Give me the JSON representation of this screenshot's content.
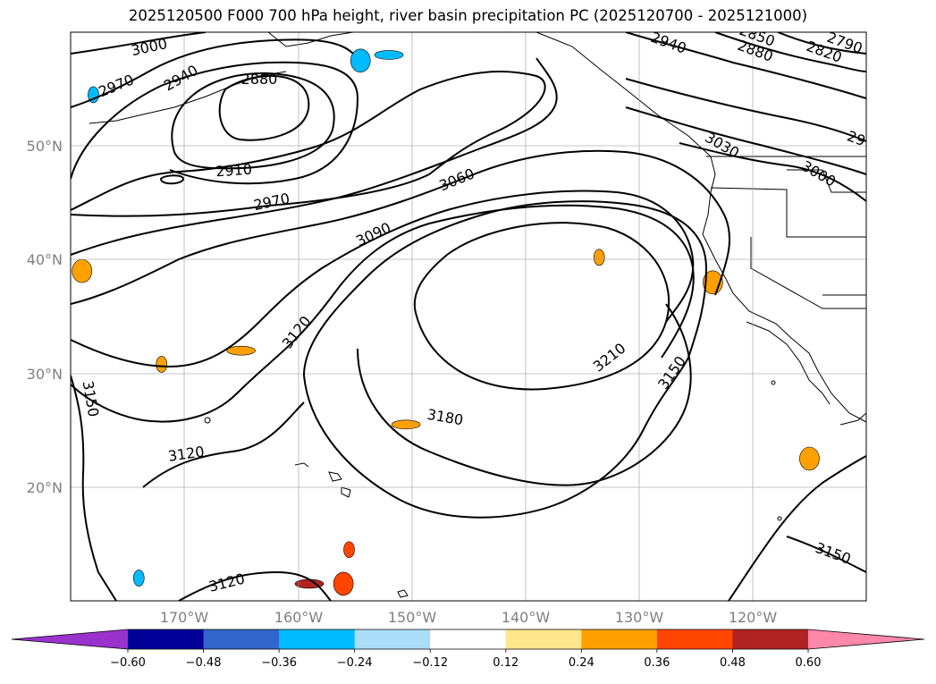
{
  "title": "2025120500 F000 700 hPa height, river basin precipitation PC (2025120700 - 2025121000)",
  "map": {
    "lat_labels": [
      "50°N",
      "40°N",
      "30°N",
      "20°N"
    ],
    "lon_labels": [
      "170°W",
      "160°W",
      "150°W",
      "140°W",
      "130°W",
      "120°W"
    ]
  },
  "chart_data": {
    "type": "heatmap",
    "title": "2025120500 F000 700 hPa height, river basin precipitation PC (2025120700 - 2025121000)",
    "lon_range": [
      -180,
      -110
    ],
    "lat_range": [
      10,
      60
    ],
    "lon_ticks": [
      -170,
      -160,
      -150,
      -140,
      -130,
      -120
    ],
    "lat_ticks": [
      50,
      40,
      30,
      20
    ],
    "height_contours": {
      "units": "m",
      "interval": 30,
      "labels": [
        "3000",
        "2970",
        "2940",
        "2880",
        "2910",
        "2970",
        "3060",
        "3090",
        "3120",
        "3150",
        "3120",
        "3120",
        "3180",
        "3210",
        "3150",
        "3150",
        "2940",
        "2880",
        "2820",
        "2790",
        "2850",
        "3030",
        "3000",
        "29"
      ],
      "high_center": {
        "lon": -137,
        "lat": 36,
        "value_range": [
          3210,
          3240
        ]
      },
      "low_center": {
        "lon": -163,
        "lat": 53,
        "value_range": [
          2850,
          2880
        ]
      }
    },
    "colorbar": {
      "tick_labels": [
        "−0.60",
        "−0.48",
        "−0.36",
        "−0.24",
        "−0.12",
        "0.12",
        "0.24",
        "0.36",
        "0.48",
        "0.60"
      ],
      "ticks": [
        -0.6,
        -0.48,
        -0.36,
        -0.24,
        -0.12,
        0.12,
        0.24,
        0.36,
        0.48,
        0.6
      ],
      "colors": [
        "#9933cc",
        "#000099",
        "#3366cc",
        "#00bbff",
        "#aaddf8",
        "#ffffff",
        "#ffe68c",
        "#ffa000",
        "#ff4500",
        "#b22222",
        "#ff88aa"
      ],
      "extend": "both"
    },
    "precip_regions": [
      {
        "lon": -155.5,
        "lat": 14.5,
        "level": 0.36
      },
      {
        "lon": -156,
        "lat": 11.5,
        "level": 0.36
      },
      {
        "lon": -159,
        "lat": 11.5,
        "level": 0.48
      },
      {
        "lon": -133.5,
        "lat": 40.2,
        "level": 0.24
      },
      {
        "lon": -123.5,
        "lat": 38,
        "level": 0.24
      },
      {
        "lon": -150.5,
        "lat": 25.5,
        "level": 0.24
      },
      {
        "lon": -172,
        "lat": 30.8,
        "level": 0.24
      },
      {
        "lon": -179,
        "lat": 39,
        "level": 0.24
      },
      {
        "lon": -165,
        "lat": 32,
        "level": 0.24
      },
      {
        "lon": -174,
        "lat": 12,
        "level": -0.36
      },
      {
        "lon": -154.5,
        "lat": 57.5,
        "level": -0.36
      },
      {
        "lon": -152,
        "lat": 58,
        "level": -0.36
      },
      {
        "lon": -178,
        "lat": 54.5,
        "level": -0.36
      },
      {
        "lon": -115,
        "lat": 22.5,
        "level": 0.24
      }
    ]
  }
}
